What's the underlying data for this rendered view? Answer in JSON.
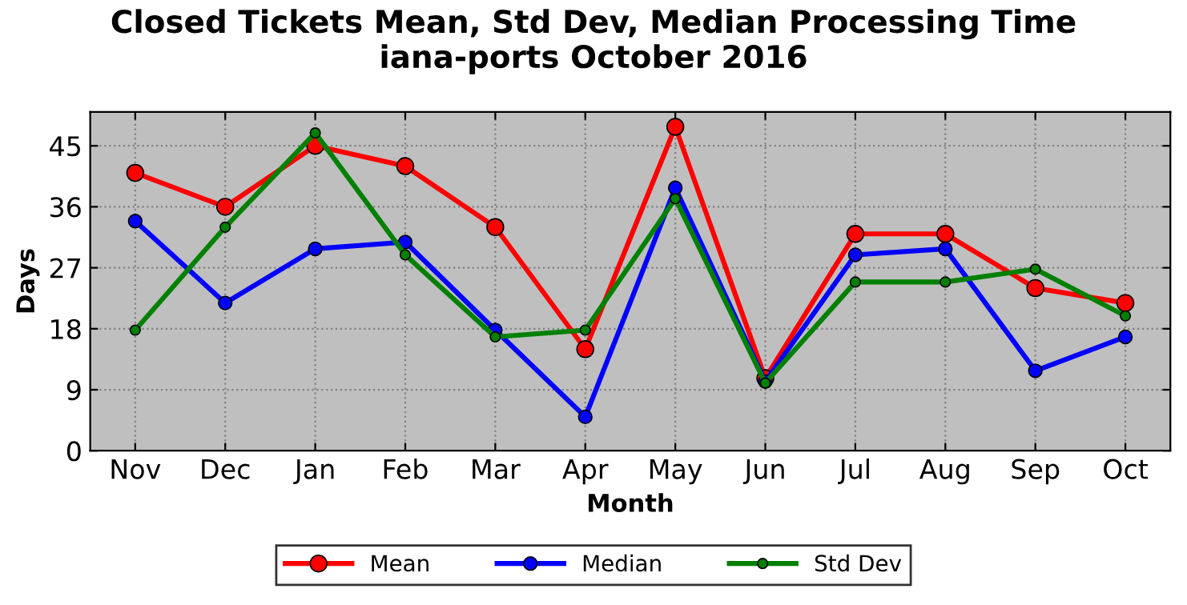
{
  "chart_data": {
    "type": "line",
    "title": "Closed Tickets Mean, Std Dev, Median Processing Time\niana-ports October 2016",
    "xlabel": "Month",
    "ylabel": "Days",
    "categories": [
      "Nov",
      "Dec",
      "Jan",
      "Feb",
      "Mar",
      "Apr",
      "May",
      "Jun",
      "Jul",
      "Aug",
      "Sep",
      "Oct"
    ],
    "series": [
      {
        "name": "Mean",
        "color": "#ff0000",
        "values": [
          41,
          36,
          45,
          42,
          33,
          15,
          47.8,
          10.7,
          32,
          32,
          24,
          21.8
        ]
      },
      {
        "name": "Median",
        "color": "#0000ff",
        "values": [
          33.9,
          21.8,
          29.8,
          30.8,
          17.8,
          5,
          38.8,
          10.2,
          28.9,
          29.8,
          11.8,
          16.8
        ]
      },
      {
        "name": "Std Dev",
        "color": "#008000",
        "values": [
          17.8,
          33,
          46.9,
          28.9,
          16.8,
          17.8,
          37.2,
          10,
          24.9,
          24.9,
          26.8,
          19.9
        ]
      }
    ],
    "ylim": [
      0,
      50
    ],
    "yticks": [
      0,
      9,
      18,
      27,
      36,
      45
    ],
    "grid": true,
    "legend": "bottom",
    "marker": "circle",
    "line_style": "solid"
  }
}
